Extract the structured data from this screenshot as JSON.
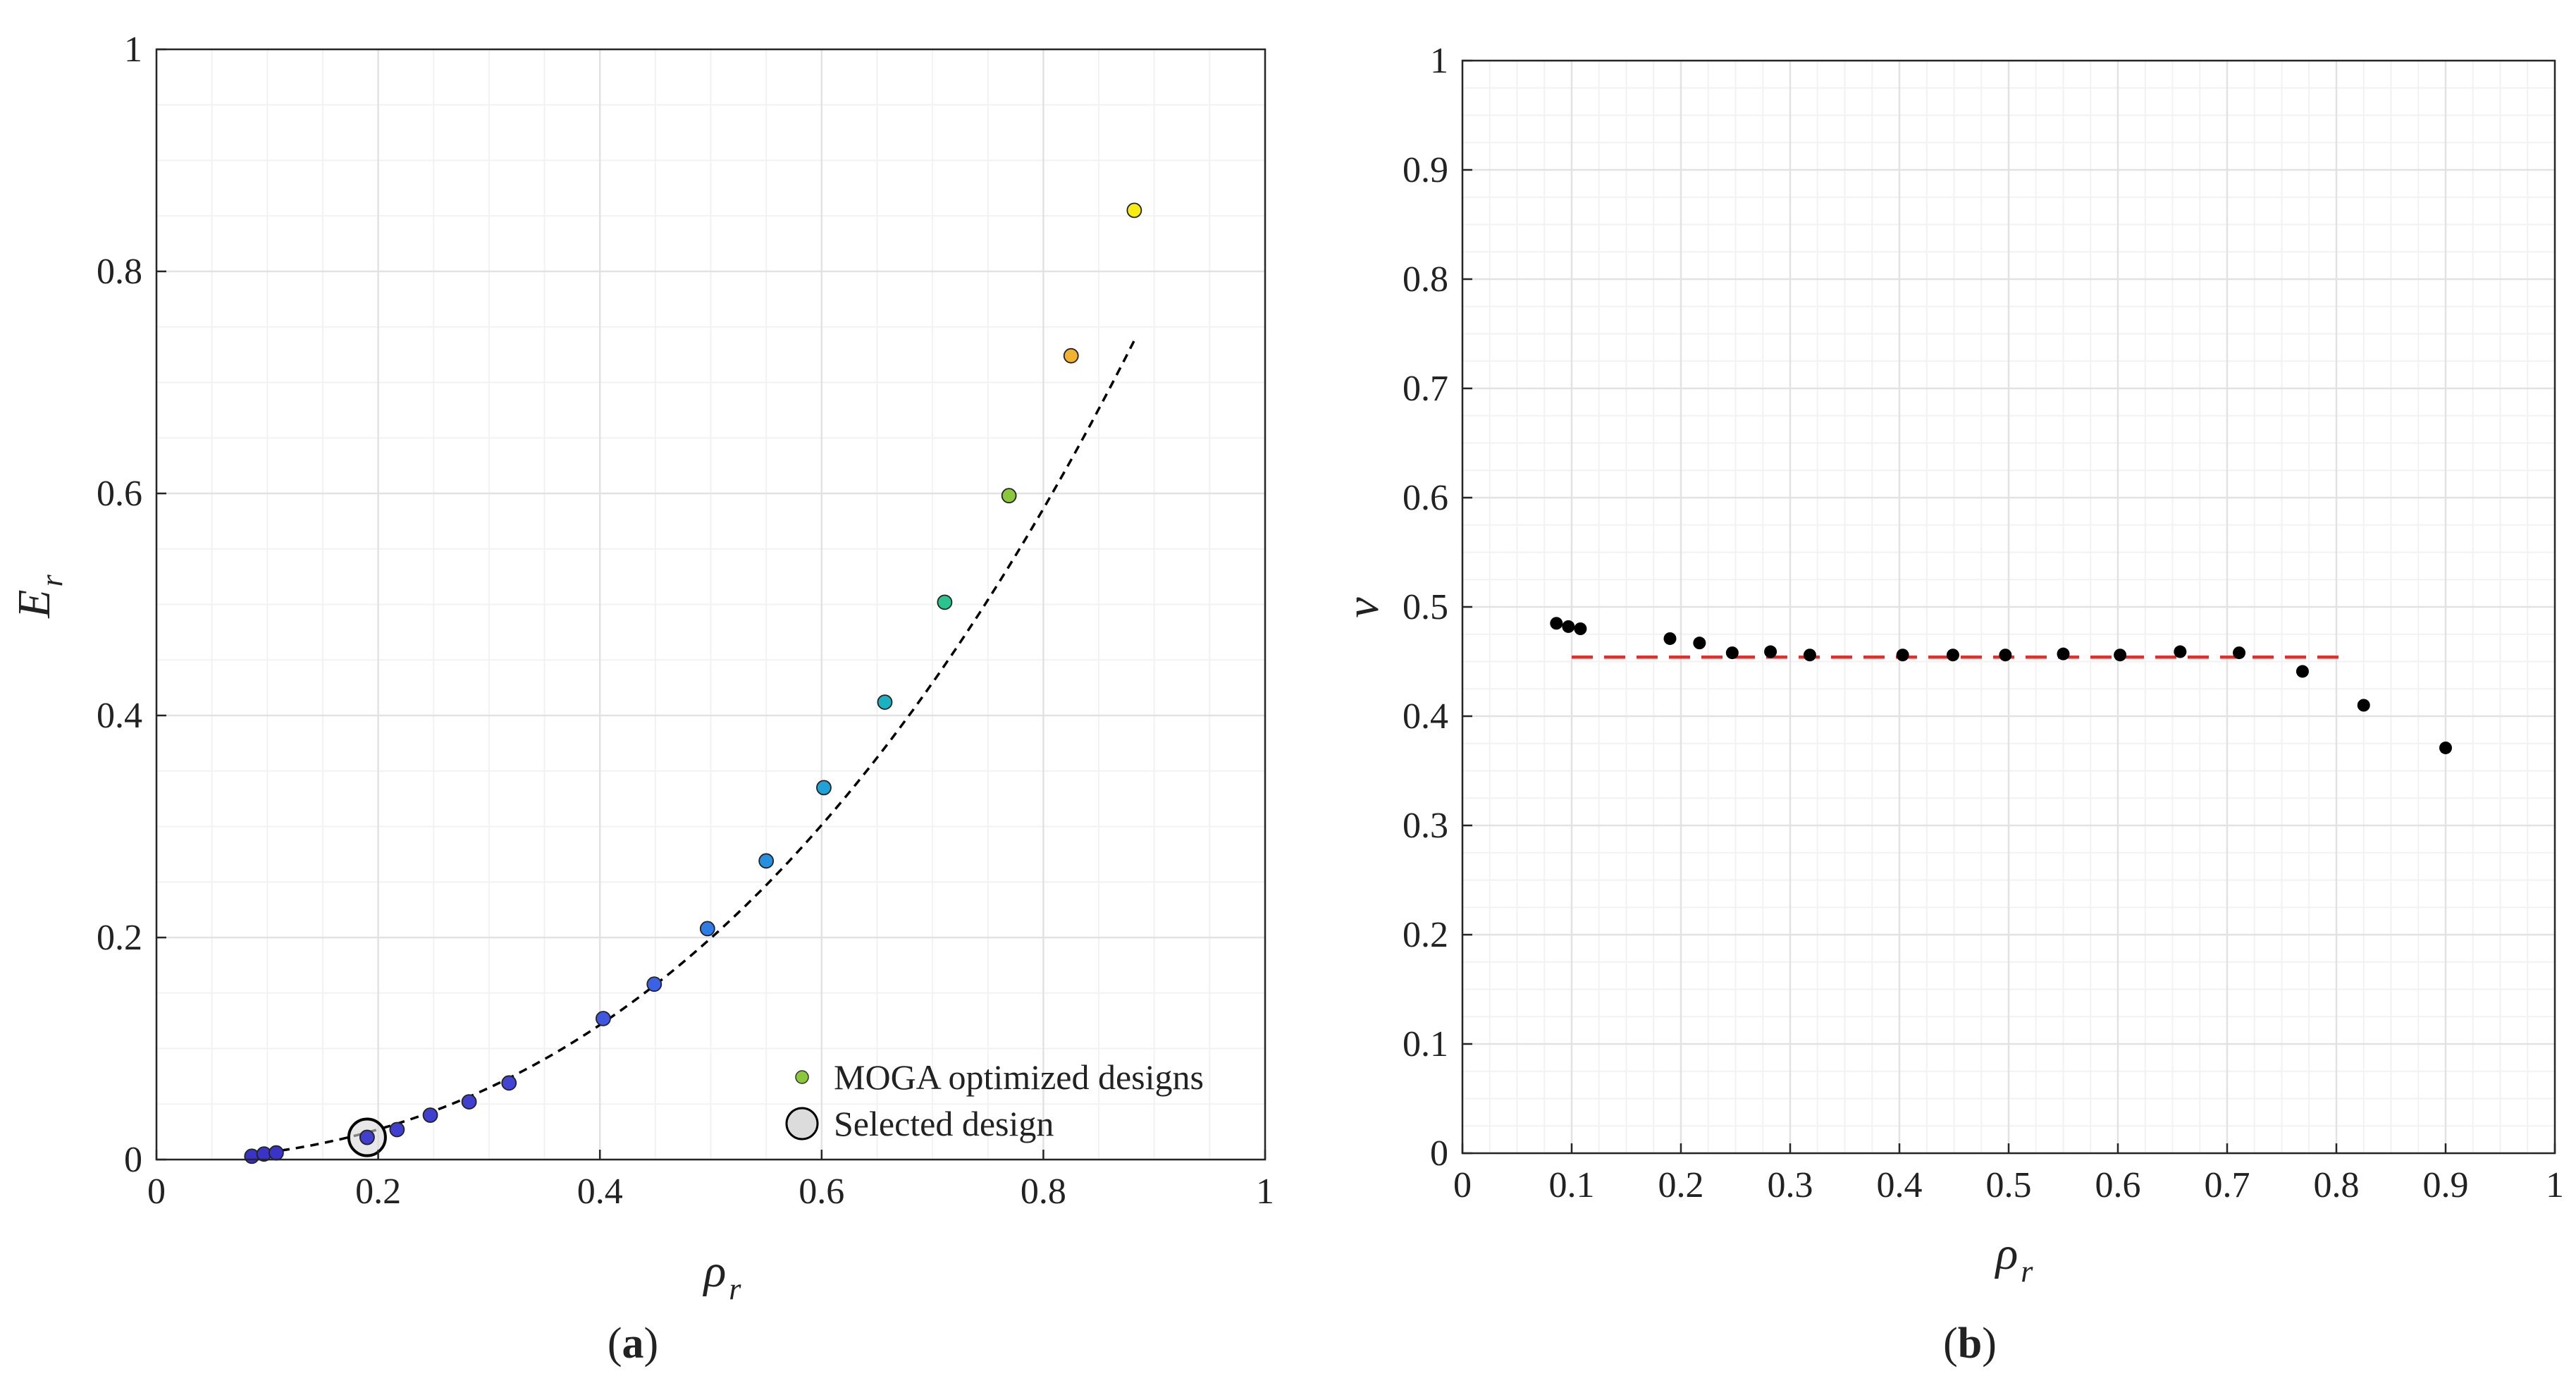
{
  "figure": {
    "panels": [
      {
        "label_open": "(",
        "label_letter": "a",
        "label_close": ")"
      },
      {
        "label_open": "(",
        "label_letter": "b",
        "label_close": ")"
      }
    ]
  },
  "chart_data": [
    {
      "type": "scatter",
      "panel": "a",
      "xlabel": {
        "symbol": "ρ",
        "sub": "r"
      },
      "ylabel": {
        "symbol": "E",
        "sub": "r"
      },
      "xlim": [
        0,
        1
      ],
      "ylim": [
        0,
        1
      ],
      "xticks": [
        "0",
        "0.2",
        "0.4",
        "0.6",
        "0.8",
        "1"
      ],
      "yticks": [
        "0",
        "0.2",
        "0.4",
        "0.6",
        "0.8",
        "1"
      ],
      "grid": true,
      "minor_grid": true,
      "legend_position": "bottom-right",
      "legend": [
        "MOGA optimized designs",
        "Selected design"
      ],
      "points": [
        {
          "x": 0.086,
          "y": 0.003,
          "color": "#3a33c8"
        },
        {
          "x": 0.097,
          "y": 0.005,
          "color": "#3a33c8"
        },
        {
          "x": 0.108,
          "y": 0.006,
          "color": "#3a33c8"
        },
        {
          "x": 0.19,
          "y": 0.02,
          "color": "#4040d0"
        },
        {
          "x": 0.217,
          "y": 0.027,
          "color": "#4040d0"
        },
        {
          "x": 0.247,
          "y": 0.04,
          "color": "#4040d0"
        },
        {
          "x": 0.282,
          "y": 0.052,
          "color": "#4040d0"
        },
        {
          "x": 0.318,
          "y": 0.069,
          "color": "#4343d4"
        },
        {
          "x": 0.403,
          "y": 0.127,
          "color": "#3f56e0"
        },
        {
          "x": 0.449,
          "y": 0.158,
          "color": "#3b62e6"
        },
        {
          "x": 0.497,
          "y": 0.208,
          "color": "#2d7ce8"
        },
        {
          "x": 0.55,
          "y": 0.269,
          "color": "#2590e0"
        },
        {
          "x": 0.602,
          "y": 0.335,
          "color": "#20a2d8"
        },
        {
          "x": 0.657,
          "y": 0.412,
          "color": "#19b2c2"
        },
        {
          "x": 0.711,
          "y": 0.502,
          "color": "#2cc48e"
        },
        {
          "x": 0.769,
          "y": 0.598,
          "color": "#8ac83a"
        },
        {
          "x": 0.825,
          "y": 0.724,
          "color": "#f2b12e"
        },
        {
          "x": 0.882,
          "y": 0.855,
          "color": "#f7ee10"
        }
      ],
      "selected": {
        "x": 0.19,
        "y": 0.02
      },
      "trend": {
        "style": "dashed",
        "color": "#000000",
        "x_range": [
          0.086,
          0.882
        ],
        "poly": [
          0,
          0,
          0.6,
          0.395
        ]
      }
    },
    {
      "type": "scatter",
      "panel": "b",
      "xlabel": {
        "symbol": "ρ",
        "sub": "r"
      },
      "ylabel": {
        "symbol": "ν",
        "sub": ""
      },
      "xlim": [
        0,
        1
      ],
      "ylim": [
        0,
        1
      ],
      "xticks": [
        "0",
        "0.1",
        "0.2",
        "0.3",
        "0.4",
        "0.5",
        "0.6",
        "0.7",
        "0.8",
        "0.9",
        "1"
      ],
      "yticks": [
        "0",
        "0.1",
        "0.2",
        "0.3",
        "0.4",
        "0.5",
        "0.6",
        "0.7",
        "0.8",
        "0.9",
        "1"
      ],
      "grid": true,
      "minor_grid": true,
      "point_color": "#000000",
      "points": [
        {
          "x": 0.086,
          "y": 0.485
        },
        {
          "x": 0.097,
          "y": 0.482
        },
        {
          "x": 0.108,
          "y": 0.48
        },
        {
          "x": 0.19,
          "y": 0.471
        },
        {
          "x": 0.217,
          "y": 0.467
        },
        {
          "x": 0.247,
          "y": 0.458
        },
        {
          "x": 0.282,
          "y": 0.459
        },
        {
          "x": 0.318,
          "y": 0.456
        },
        {
          "x": 0.403,
          "y": 0.456
        },
        {
          "x": 0.449,
          "y": 0.456
        },
        {
          "x": 0.497,
          "y": 0.456
        },
        {
          "x": 0.55,
          "y": 0.457
        },
        {
          "x": 0.602,
          "y": 0.456
        },
        {
          "x": 0.657,
          "y": 0.459
        },
        {
          "x": 0.711,
          "y": 0.458
        },
        {
          "x": 0.769,
          "y": 0.441
        },
        {
          "x": 0.825,
          "y": 0.41
        },
        {
          "x": 0.9,
          "y": 0.371
        }
      ],
      "reference_line": {
        "y": 0.454,
        "x_range": [
          0.1,
          0.81
        ],
        "style": "dashed",
        "color": "#e0302c"
      }
    }
  ]
}
